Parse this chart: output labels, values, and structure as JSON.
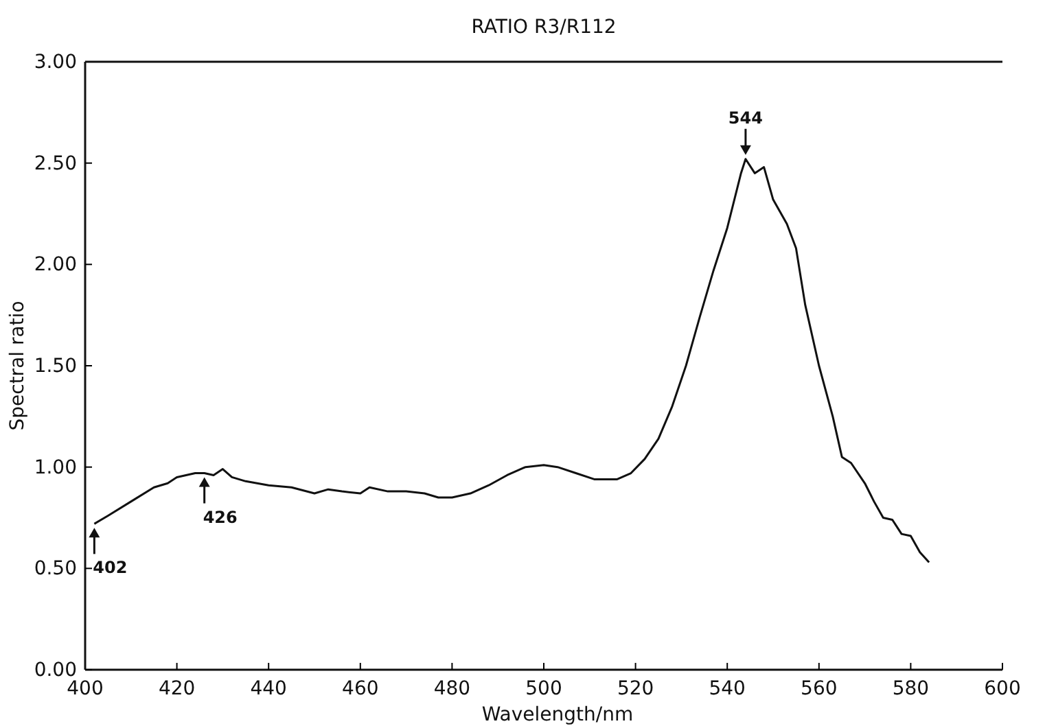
{
  "chart_data": {
    "type": "line",
    "title": "RATIO  R3/R112",
    "xlabel": "Wavelength/nm",
    "ylabel": "Spectral ratio",
    "x": [
      402,
      405,
      410,
      415,
      418,
      420,
      424,
      426,
      428,
      430,
      432,
      435,
      440,
      445,
      450,
      453,
      456,
      460,
      462,
      466,
      470,
      474,
      477,
      480,
      484,
      488,
      492,
      496,
      500,
      503,
      507,
      511,
      516,
      519,
      522,
      525,
      528,
      531,
      534,
      537,
      540,
      543,
      544,
      546,
      548,
      550,
      553,
      555,
      557,
      560,
      563,
      565,
      567,
      570,
      572,
      574,
      576,
      578,
      580,
      582,
      584
    ],
    "series": [
      {
        "color": "#111111",
        "values": [
          0.72,
          0.76,
          0.83,
          0.9,
          0.92,
          0.95,
          0.97,
          0.97,
          0.96,
          0.99,
          0.95,
          0.93,
          0.91,
          0.9,
          0.87,
          0.89,
          0.88,
          0.87,
          0.9,
          0.88,
          0.88,
          0.87,
          0.85,
          0.85,
          0.87,
          0.91,
          0.96,
          1.0,
          1.01,
          1.0,
          0.97,
          0.94,
          0.94,
          0.97,
          1.04,
          1.14,
          1.3,
          1.5,
          1.74,
          1.97,
          2.18,
          2.45,
          2.52,
          2.45,
          2.48,
          2.32,
          2.2,
          2.08,
          1.8,
          1.5,
          1.25,
          1.05,
          1.02,
          0.92,
          0.83,
          0.75,
          0.74,
          0.67,
          0.66,
          0.58,
          0.53
        ]
      }
    ],
    "xlim": [
      400,
      600
    ],
    "xticks": [
      400,
      420,
      440,
      460,
      480,
      500,
      520,
      540,
      560,
      580,
      600
    ],
    "ylim": [
      0,
      3
    ],
    "yticks": [
      {
        "value": 0,
        "label": "0.00"
      },
      {
        "value": 0.5,
        "label": "0.50"
      },
      {
        "value": 1,
        "label": "1.00"
      },
      {
        "value": 1.5,
        "label": "1.50"
      },
      {
        "value": 2,
        "label": "2.00"
      },
      {
        "value": 2.5,
        "label": "2.50"
      },
      {
        "value": 3,
        "label": "3.00"
      }
    ],
    "marker": "none",
    "line_style": "solid",
    "annotations": [
      {
        "text": "402",
        "x": 402,
        "y": 0.72
      },
      {
        "text": "426",
        "x": 426,
        "y": 0.97
      },
      {
        "text": "544",
        "x": 544,
        "y": 2.52
      }
    ]
  }
}
